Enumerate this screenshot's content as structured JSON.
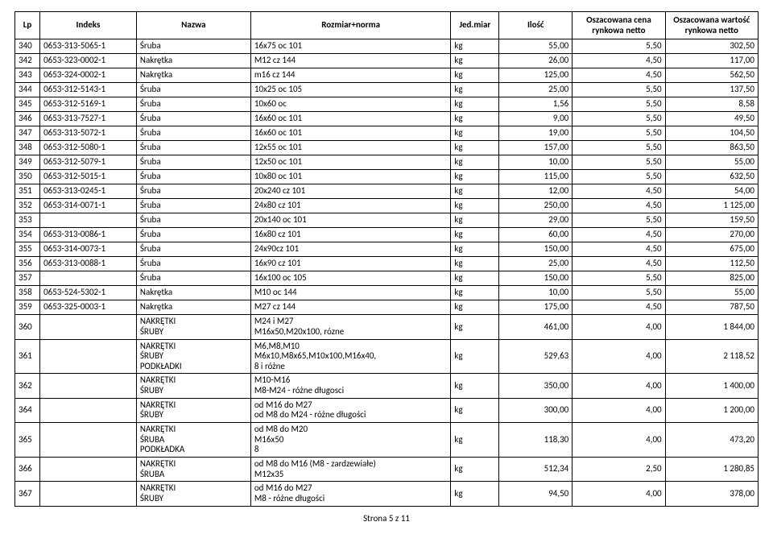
{
  "headers": {
    "lp": "Lp",
    "indeks": "Indeks",
    "nazwa": "Nazwa",
    "rozmiar": "Rozmiar+norma",
    "jed": "Jed.miar",
    "ilosc": "Ilość",
    "cena": "Oszacowana cena rynkowa netto",
    "wartosc": "Oszacowana wartość rynkowa netto"
  },
  "rows": [
    {
      "lp": "340",
      "indeks": "0653-313-5065-1",
      "nazwa": "Śruba",
      "rozmiar": "16x75 oc 101",
      "jed": "kg",
      "ilosc": "55,00",
      "cena": "5,50",
      "wartosc": "302,50"
    },
    {
      "lp": "342",
      "indeks": "0653-323-0002-1",
      "nazwa": "Nakrętka",
      "rozmiar": "M12 cz 144",
      "jed": "kg",
      "ilosc": "26,00",
      "cena": "4,50",
      "wartosc": "117,00"
    },
    {
      "lp": "343",
      "indeks": "0653-324-0002-1",
      "nazwa": "Nakrętka",
      "rozmiar": "m16 cz 144",
      "jed": "kg",
      "ilosc": "125,00",
      "cena": "4,50",
      "wartosc": "562,50"
    },
    {
      "lp": "344",
      "indeks": "0653-312-5143-1",
      "nazwa": "Śruba",
      "rozmiar": "10x25 oc 105",
      "jed": "kg",
      "ilosc": "25,00",
      "cena": "5,50",
      "wartosc": "137,50"
    },
    {
      "lp": "345",
      "indeks": "0653-312-5169-1",
      "nazwa": "Śruba",
      "rozmiar": "10x60 oc",
      "jed": "kg",
      "ilosc": "1,56",
      "cena": "5,50",
      "wartosc": "8,58"
    },
    {
      "lp": "346",
      "indeks": "0653-313-7527-1",
      "nazwa": "Śruba",
      "rozmiar": "16x60 oc 101",
      "jed": "kg",
      "ilosc": "9,00",
      "cena": "5,50",
      "wartosc": "49,50"
    },
    {
      "lp": "347",
      "indeks": "0653-313-5072-1",
      "nazwa": "Śruba",
      "rozmiar": "16x60 oc 101",
      "jed": "kg",
      "ilosc": "19,00",
      "cena": "5,50",
      "wartosc": "104,50"
    },
    {
      "lp": "348",
      "indeks": "0653-312-5080-1",
      "nazwa": "Śruba",
      "rozmiar": "12x55 oc 101",
      "jed": "kg",
      "ilosc": "157,00",
      "cena": "5,50",
      "wartosc": "863,50"
    },
    {
      "lp": "349",
      "indeks": "0653-312-5079-1",
      "nazwa": "Śruba",
      "rozmiar": "12x50 oc 101",
      "jed": "kg",
      "ilosc": "10,00",
      "cena": "5,50",
      "wartosc": "55,00"
    },
    {
      "lp": "350",
      "indeks": "0653-312-5015-1",
      "nazwa": "Śruba",
      "rozmiar": "10x80 oc 101",
      "jed": "kg",
      "ilosc": "115,00",
      "cena": "5,50",
      "wartosc": "632,50"
    },
    {
      "lp": "351",
      "indeks": "0653-313-0245-1",
      "nazwa": "Śruba",
      "rozmiar": "20x240 cz 101",
      "jed": "kg",
      "ilosc": "12,00",
      "cena": "4,50",
      "wartosc": "54,00"
    },
    {
      "lp": "352",
      "indeks": "0653-314-0071-1",
      "nazwa": "Śruba",
      "rozmiar": "24x80 cz 101",
      "jed": "kg",
      "ilosc": "250,00",
      "cena": "4,50",
      "wartosc": "1 125,00"
    },
    {
      "lp": "353",
      "indeks": "",
      "nazwa": "Śruba",
      "rozmiar": "20x140 oc 101",
      "jed": "kg",
      "ilosc": "29,00",
      "cena": "5,50",
      "wartosc": "159,50"
    },
    {
      "lp": "354",
      "indeks": "0653-313-0086-1",
      "nazwa": "Śruba",
      "rozmiar": "16x80 cz 101",
      "jed": "kg",
      "ilosc": "60,00",
      "cena": "4,50",
      "wartosc": "270,00"
    },
    {
      "lp": "355",
      "indeks": "0653-314-0073-1",
      "nazwa": "Śruba",
      "rozmiar": "24x90cz 101",
      "jed": "kg",
      "ilosc": "150,00",
      "cena": "4,50",
      "wartosc": "675,00"
    },
    {
      "lp": "356",
      "indeks": "0653-313-0088-1",
      "nazwa": "Śruba",
      "rozmiar": "16x90 cz 101",
      "jed": "kg",
      "ilosc": "25,00",
      "cena": "4,50",
      "wartosc": "112,50"
    },
    {
      "lp": "357",
      "indeks": "",
      "nazwa": "Śruba",
      "rozmiar": "16x100 oc 105",
      "jed": "kg",
      "ilosc": "150,00",
      "cena": "5,50",
      "wartosc": "825,00"
    },
    {
      "lp": "358",
      "indeks": "0653-524-5302-1",
      "nazwa": "Nakrętka",
      "rozmiar": "M10 oc 144",
      "jed": "kg",
      "ilosc": "10,00",
      "cena": "5,50",
      "wartosc": "55,00"
    },
    {
      "lp": "359",
      "indeks": "0653-325-0003-1",
      "nazwa": "Nakrętka",
      "rozmiar": "M27 cz 144",
      "jed": "kg",
      "ilosc": "175,00",
      "cena": "4,50",
      "wartosc": "787,50"
    },
    {
      "lp": "360",
      "indeks": "",
      "nazwa": "NAKRĘTKI\nŚRUBY",
      "rozmiar": "M24 i M27\nM16x50,M20x100, rózne",
      "jed": "kg",
      "ilosc": "461,00",
      "cena": "4,00",
      "wartosc": "1 844,00"
    },
    {
      "lp": "361",
      "indeks": "",
      "nazwa": "NAKRĘTKI\nŚRUBY\nPODKŁADKI",
      "rozmiar": "M6,M8,M10\nM6x10,M8x65,M10x100,M16x40,\n8 i różne",
      "jed": "kg",
      "ilosc": "529,63",
      "cena": "4,00",
      "wartosc": "2 118,52"
    },
    {
      "lp": "362",
      "indeks": "",
      "nazwa": "NAKRĘTKI\nŚRUBY",
      "rozmiar": "M10-M16\nM8-M24 - różne długosci",
      "jed": "kg",
      "ilosc": "350,00",
      "cena": "4,00",
      "wartosc": "1 400,00"
    },
    {
      "lp": "364",
      "indeks": "",
      "nazwa": "NAKRĘTKI\nŚRUBY",
      "rozmiar": "od M16 do M27\nod M8 do M24 - różne długości",
      "jed": "kg",
      "ilosc": "300,00",
      "cena": "4,00",
      "wartosc": "1 200,00"
    },
    {
      "lp": "365",
      "indeks": "",
      "nazwa": "NAKRĘTKI\nŚRUBA\nPODKŁADKA",
      "rozmiar": "od M8 do M20\nM16x50\n8",
      "jed": "kg",
      "ilosc": "118,30",
      "cena": "4,00",
      "wartosc": "473,20"
    },
    {
      "lp": "366",
      "indeks": "",
      "nazwa": "NAKRĘTKI\nŚRUBA",
      "rozmiar": "od M8 do M16 (M8 - zardzewiałe)\nM12x35",
      "jed": "kg",
      "ilosc": "512,34",
      "cena": "2,50",
      "wartosc": "1 280,85"
    },
    {
      "lp": "367",
      "indeks": "",
      "nazwa": "NAKRĘTKI\nŚRUBY",
      "rozmiar": "od M16 do M27\nM8 - różne długości",
      "jed": "kg",
      "ilosc": "94,50",
      "cena": "4,00",
      "wartosc": "378,00"
    }
  ],
  "footer": "Strona 5 z 11"
}
